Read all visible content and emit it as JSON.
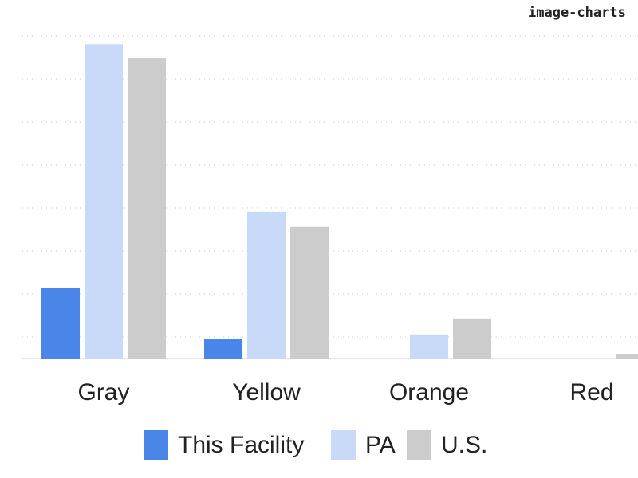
{
  "chart_data": {
    "type": "bar",
    "watermark": "image-charts",
    "categories": [
      "Gray",
      "Yellow",
      "Orange",
      "Red"
    ],
    "series": [
      {
        "name": "This Facility",
        "color": "#4a86e8",
        "values": [
          1.63,
          0.46,
          0,
          0
        ]
      },
      {
        "name": "PA",
        "color": "#c9daf8",
        "values": [
          7.31,
          3.41,
          0.56,
          0
        ]
      },
      {
        "name": "U.S.",
        "color": "#cccccc",
        "values": [
          6.98,
          3.06,
          0.93,
          0.11
        ]
      }
    ],
    "ylim": [
      0,
      7.5
    ],
    "yticks": [
      0.5,
      1.5,
      2.5,
      3.5,
      4.5,
      5.5,
      6.5,
      7.5
    ],
    "grid": true
  }
}
